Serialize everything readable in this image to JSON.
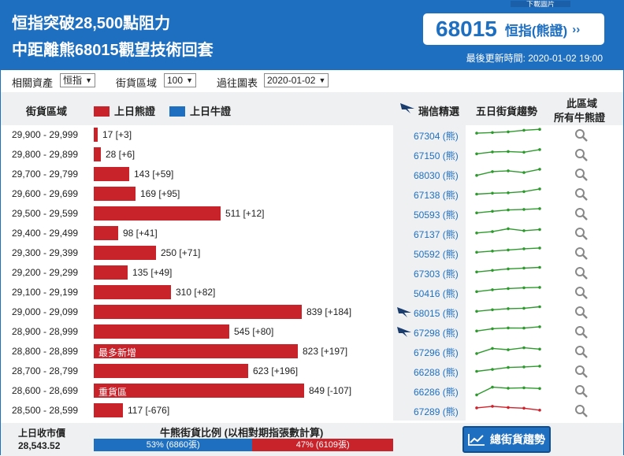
{
  "header": {
    "title_line1": "恒指突破28,500點阻力",
    "title_line2": "中距離熊68015觀望技術回套",
    "download_tab": "下載圖片",
    "feature_code": "68015",
    "feature_name": "恒指(熊證)",
    "feature_arrow": "››",
    "update_time": "最後更新時間: 2020-01-02 19:00"
  },
  "filters": {
    "asset_label": "相關資產",
    "asset_value": "恒指",
    "zone_label": "街貨區域",
    "zone_value": "100",
    "history_label": "過往圖表",
    "history_value": "2020-01-02"
  },
  "table_header": {
    "zone": "街貨區域",
    "bear_legend": "上日熊證",
    "bull_legend": "上日牛證",
    "pick": "瑞信精選",
    "trend": "五日街貨趨勢",
    "all_line1": "此區域",
    "all_line2": "所有牛熊證"
  },
  "colors": {
    "bear": "#c8222b",
    "bull": "#1f6fc1",
    "trend_up": "#2e9a2e",
    "trend_down": "#d0202a"
  },
  "rows": [
    {
      "range": "29,900 - 29,999",
      "qty": 17,
      "label": "17 [+3]",
      "tag": "",
      "code": "67304 (熊)",
      "pick": false,
      "trend": [
        45,
        48,
        52,
        60,
        65
      ],
      "trend_dir": "up"
    },
    {
      "range": "29,800 - 29,899",
      "qty": 28,
      "label": "28 [+6]",
      "tag": "",
      "code": "67150 (熊)",
      "pick": false,
      "trend": [
        40,
        50,
        52,
        48,
        62
      ],
      "trend_dir": "up"
    },
    {
      "range": "29,700 - 29,799",
      "qty": 143,
      "label": "143 [+59]",
      "tag": "",
      "code": "68030 (熊)",
      "pick": false,
      "trend": [
        30,
        50,
        54,
        45,
        62
      ],
      "trend_dir": "up"
    },
    {
      "range": "29,600 - 29,699",
      "qty": 169,
      "label": "169 [+95]",
      "tag": "",
      "code": "67138 (熊)",
      "pick": false,
      "trend": [
        35,
        40,
        42,
        48,
        62
      ],
      "trend_dir": "up"
    },
    {
      "range": "29,500 - 29,599",
      "qty": 511,
      "label": "511 [+12]",
      "tag": "",
      "code": "50593 (熊)",
      "pick": false,
      "trend": [
        40,
        48,
        55,
        58,
        62
      ],
      "trend_dir": "up"
    },
    {
      "range": "29,400 - 29,499",
      "qty": 98,
      "label": "98 [+41]",
      "tag": "",
      "code": "67137 (熊)",
      "pick": false,
      "trend": [
        38,
        45,
        60,
        50,
        56
      ],
      "trend_dir": "up"
    },
    {
      "range": "29,300 - 29,399",
      "qty": 250,
      "label": "250 [+71]",
      "tag": "",
      "code": "50592 (熊)",
      "pick": false,
      "trend": [
        40,
        46,
        52,
        58,
        62
      ],
      "trend_dir": "up"
    },
    {
      "range": "29,200 - 29,299",
      "qty": 135,
      "label": "135 [+49]",
      "tag": "",
      "code": "67303 (熊)",
      "pick": false,
      "trend": [
        40,
        48,
        56,
        60,
        64
      ],
      "trend_dir": "up"
    },
    {
      "range": "29,100 - 29,199",
      "qty": 310,
      "label": "310 [+82]",
      "tag": "",
      "code": "50416 (熊)",
      "pick": false,
      "trend": [
        40,
        50,
        56,
        60,
        62
      ],
      "trend_dir": "up"
    },
    {
      "range": "29,000 - 29,099",
      "qty": 839,
      "label": "839 [+184]",
      "tag": "",
      "code": "68015 (熊)",
      "pick": true,
      "trend": [
        40,
        48,
        54,
        56,
        64
      ],
      "trend_dir": "up"
    },
    {
      "range": "28,900 - 28,999",
      "qty": 545,
      "label": "545 [+80]",
      "tag": "",
      "code": "67298 (熊)",
      "pick": true,
      "trend": [
        40,
        52,
        56,
        55,
        62
      ],
      "trend_dir": "up"
    },
    {
      "range": "28,800 - 28,899",
      "qty": 823,
      "label": "823 [+197]",
      "tag": "最多新增",
      "code": "67296 (熊)",
      "pick": false,
      "trend": [
        25,
        52,
        45,
        55,
        48
      ],
      "trend_dir": "up"
    },
    {
      "range": "28,700 - 28,799",
      "qty": 623,
      "label": "623 [+196]",
      "tag": "",
      "code": "66288 (熊)",
      "pick": false,
      "trend": [
        35,
        45,
        55,
        58,
        62
      ],
      "trend_dir": "up"
    },
    {
      "range": "28,600 - 28,699",
      "qty": 849,
      "label": "849 [-107]",
      "tag": "重貨區",
      "code": "66286 (熊)",
      "pick": false,
      "trend": [
        15,
        55,
        50,
        52,
        48
      ],
      "trend_dir": "up"
    },
    {
      "range": "28,500 - 28,599",
      "qty": 117,
      "label": "117 [-676]",
      "tag": "",
      "code": "67289 (熊)",
      "pick": false,
      "trend": [
        50,
        58,
        52,
        48,
        38
      ],
      "trend_dir": "down"
    }
  ],
  "footer": {
    "prev_close_label": "上日收市價",
    "prev_close_value": "28,543.52",
    "ratio_title": "牛熊街貨比例 (以相對期指張數計算)",
    "bull_pct": 53,
    "bear_pct": 47,
    "bull_label": "53% (6860張)",
    "bear_label": "47% (6109張)",
    "trend_button": "總街貨趨勢"
  }
}
